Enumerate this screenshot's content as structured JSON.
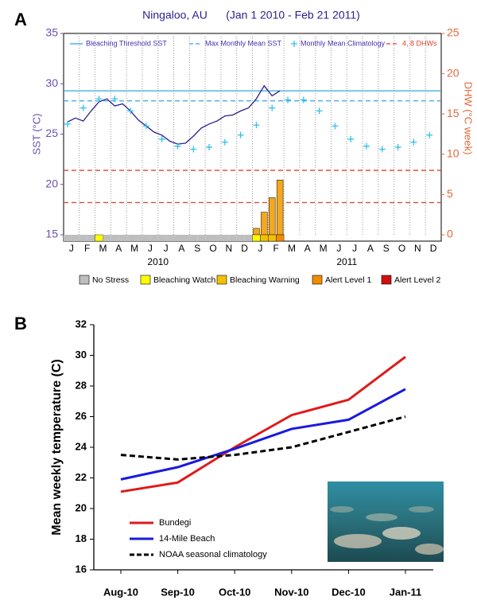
{
  "chart_data": [
    {
      "type": "sst_dhw",
      "label": "A",
      "title": "Ningaloo, AU      (Jan 1 2010 - Feb 21 2011)",
      "ylabel": "SST (°C)",
      "y2label": "DHW (°C week)",
      "ylim": [
        15,
        35
      ],
      "yticks": [
        15,
        20,
        25,
        30,
        35
      ],
      "y2lim": [
        0,
        25
      ],
      "y2ticks": [
        0,
        5,
        10,
        15,
        20,
        25
      ],
      "categories": [
        "J",
        null,
        "F",
        null,
        "M",
        null,
        "A",
        null,
        "M",
        null,
        "J",
        null,
        "J",
        null,
        "A",
        null,
        "S",
        null,
        "O",
        null,
        "N",
        null,
        "D",
        null,
        "J",
        null,
        "F",
        null,
        "M",
        null,
        "A",
        null,
        "M",
        null,
        "J",
        null,
        "J",
        null,
        "A",
        null,
        "S",
        null,
        "O",
        null,
        "N",
        null,
        "D",
        null
      ],
      "x_groups": [
        "2010",
        "2011"
      ],
      "series": [
        {
          "name": "SST",
          "color": "#2a1f8f",
          "values": [
            26.2,
            26.6,
            26.3,
            27.3,
            28.2,
            28.5,
            27.8,
            28.0,
            27.3,
            26.4,
            25.8,
            25.2,
            24.9,
            24.3,
            24.0,
            24.1,
            24.8,
            25.6,
            26.0,
            26.3,
            26.8,
            26.9,
            27.3,
            27.6,
            28.5,
            29.8,
            28.8,
            29.3,
            null,
            null,
            null,
            null,
            null,
            null,
            null,
            null,
            null,
            null,
            null,
            null,
            null,
            null,
            null,
            null,
            null,
            null,
            null,
            null
          ]
        },
        {
          "name": "Monthly Mean Climatology",
          "color": "#33c0ea",
          "marker": "+",
          "values": [
            26.0,
            null,
            27.6,
            null,
            28.5,
            null,
            28.5,
            null,
            27.3,
            null,
            25.8,
            null,
            24.5,
            null,
            23.8,
            null,
            23.5,
            null,
            23.7,
            null,
            24.2,
            null,
            24.9,
            null,
            25.9,
            null,
            27.6,
            null,
            28.4,
            null,
            28.4,
            null,
            27.3,
            null,
            25.8,
            null,
            24.5,
            null,
            23.8,
            null,
            23.5,
            null,
            23.7,
            null,
            24.2,
            null,
            24.9,
            null
          ]
        },
        {
          "name": "DHW",
          "color": "#f5a81c",
          "axis": "y2",
          "values": [
            0,
            0,
            0,
            0,
            0,
            0,
            0,
            0,
            0,
            0,
            0,
            0,
            0,
            0,
            0,
            0,
            0,
            0,
            0,
            0,
            0,
            0,
            0,
            0,
            0.8,
            2.8,
            4.6,
            6.8,
            null,
            null,
            null,
            null,
            null,
            null,
            null,
            null,
            null,
            null,
            null,
            null,
            null,
            null,
            null,
            null,
            null,
            null,
            null,
            null
          ]
        }
      ],
      "hlines": [
        {
          "name": "Bleaching Threshold SST",
          "color": "#33a7e0",
          "dashed": false,
          "values": [
            29.3
          ]
        },
        {
          "name": "Max Monthly Mean SST",
          "color": "#33a7e0",
          "dashed": true,
          "values": [
            28.3
          ]
        },
        {
          "name": "4, 8 DHWs",
          "color": "#e0402a",
          "dashed": true,
          "axis": "y2",
          "values": [
            4,
            8
          ]
        }
      ],
      "alert_levels": [
        {
          "name": "No Stress",
          "color": "#bebebe"
        },
        {
          "name": "Bleaching Watch",
          "color": "#ffff00"
        },
        {
          "name": "Bleaching Warning",
          "color": "#f2c200"
        },
        {
          "name": "Alert Level 1",
          "color": "#f08c00"
        },
        {
          "name": "Alert Level 2",
          "color": "#d01010"
        }
      ],
      "status": [
        0,
        0,
        0,
        0,
        1,
        0,
        0,
        0,
        0,
        0,
        0,
        0,
        0,
        0,
        0,
        0,
        0,
        0,
        0,
        0,
        0,
        0,
        0,
        0,
        1,
        2,
        2,
        3,
        null,
        null,
        null,
        null,
        null,
        null,
        null,
        null,
        null,
        null,
        null,
        null,
        null,
        null,
        null,
        null,
        null,
        null,
        null,
        null
      ]
    },
    {
      "type": "line",
      "label": "B",
      "ylabel": "Mean weekly temperature (C)",
      "categories": [
        "Aug-10",
        "Sep-10",
        "Oct-10",
        "Nov-10",
        "Dec-10",
        "Jan-11"
      ],
      "ylim": [
        16,
        32
      ],
      "yticks": [
        16,
        18,
        20,
        22,
        24,
        26,
        28,
        30,
        32
      ],
      "series": [
        {
          "name": "Bundegi",
          "color": "#e01a1a",
          "dashed": false,
          "values": [
            21.1,
            21.7,
            24.0,
            26.1,
            27.1,
            29.9
          ]
        },
        {
          "name": "14-Mile Beach",
          "color": "#1a1ae0",
          "dashed": false,
          "values": [
            21.9,
            22.7,
            23.9,
            25.2,
            25.8,
            27.8
          ]
        },
        {
          "name": "NOAA seasonal climatology",
          "color": "#000000",
          "dashed": true,
          "values": [
            23.5,
            23.2,
            23.5,
            24.0,
            25.0,
            26.0
          ]
        }
      ]
    }
  ]
}
